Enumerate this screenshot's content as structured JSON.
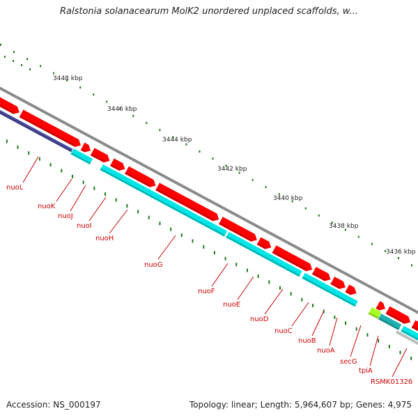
{
  "header": {
    "title": "Ralstonia solanacearum MolK2 unordered unplaced scaffolds, w..."
  },
  "ruler": {
    "ticks": [
      {
        "label": "3448 kbp"
      },
      {
        "label": "3446 kbp"
      },
      {
        "label": "3444 kbp"
      },
      {
        "label": "3442 kbp"
      },
      {
        "label": "3440 kbp"
      },
      {
        "label": "3438 kbp"
      },
      {
        "label": "3436 kbp"
      }
    ]
  },
  "genes": [
    {
      "label": "nuoL"
    },
    {
      "label": "nuoK"
    },
    {
      "label": "nuoJ"
    },
    {
      "label": "nuoI"
    },
    {
      "label": "nuoH"
    },
    {
      "label": "nuoG"
    },
    {
      "label": "nuoF"
    },
    {
      "label": "nuoE"
    },
    {
      "label": "nuoD"
    },
    {
      "label": "nuoC"
    },
    {
      "label": "nuoB"
    },
    {
      "label": "nuoA"
    },
    {
      "label": "secG"
    },
    {
      "label": "tpiA"
    },
    {
      "label": "RSMK01326"
    }
  ],
  "colors": {
    "backbone": "#8a8a8a",
    "gene_red": "#ff0000",
    "cds_cyan": "#00e5e5",
    "other_blue": "#4b4ba0",
    "trna_green": "#aaff22",
    "tick_green": "#1f7a1f",
    "label_red": "#cc0000"
  },
  "footer": {
    "accession": "Accession: NS_000197",
    "summary": "Topology: linear; Length: 5,964,607 bp; Genes: 4,975"
  }
}
